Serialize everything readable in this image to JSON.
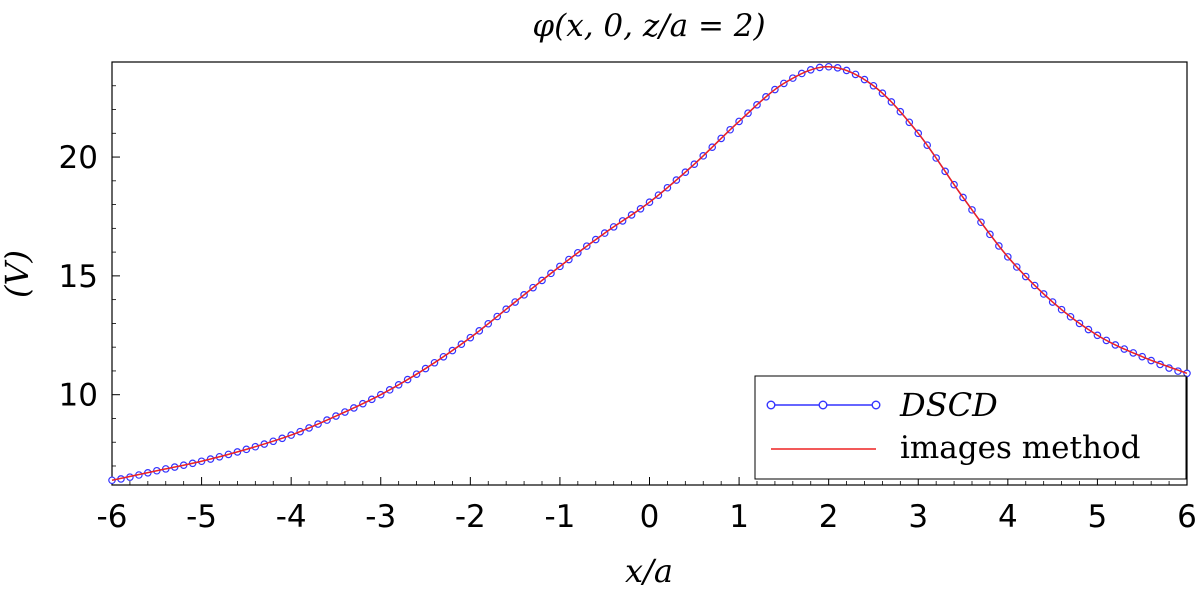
{
  "chart_data": {
    "type": "line",
    "title": "φ(x, 0, z/a = 2)",
    "xlabel": "x/a",
    "ylabel": "(V)",
    "xlim": [
      -6,
      6
    ],
    "ylim": [
      6.2,
      24
    ],
    "x_ticks": [
      -6,
      -5,
      -4,
      -3,
      -2,
      -1,
      0,
      1,
      2,
      3,
      4,
      5,
      6
    ],
    "x_tick_labels": [
      "-6",
      "-5",
      "-4",
      "-3",
      "-2",
      "-1",
      "0",
      "1",
      "2",
      "3",
      "4",
      "5",
      "6"
    ],
    "y_ticks": [
      10,
      15,
      20
    ],
    "y_tick_labels": [
      "10",
      "15",
      "20"
    ],
    "grid": false,
    "legend_position": "bottom-right",
    "x": [
      -6,
      -5.5,
      -5,
      -4.5,
      -4,
      -3.5,
      -3,
      -2.5,
      -2,
      -1.5,
      -1,
      -0.5,
      0,
      0.5,
      1,
      1.5,
      2,
      2.5,
      3,
      3.5,
      4,
      4.5,
      5,
      5.5,
      6
    ],
    "series": [
      {
        "name": "DSCD",
        "color": "#3333ff",
        "marker": "circle",
        "values": [
          6.4,
          6.8,
          7.2,
          7.7,
          8.3,
          9.1,
          10.0,
          11.1,
          12.4,
          13.9,
          15.4,
          16.8,
          18.1,
          19.7,
          21.5,
          23.1,
          23.8,
          23.0,
          21.0,
          18.3,
          15.8,
          13.9,
          12.5,
          11.6,
          10.9
        ]
      },
      {
        "name": "images method",
        "color": "#ee2222",
        "marker": "none",
        "values": [
          6.4,
          6.8,
          7.2,
          7.7,
          8.3,
          9.1,
          10.0,
          11.1,
          12.4,
          13.9,
          15.4,
          16.8,
          18.1,
          19.7,
          21.5,
          23.1,
          23.8,
          23.0,
          21.0,
          18.3,
          15.8,
          13.9,
          12.5,
          11.6,
          10.9
        ]
      }
    ]
  }
}
